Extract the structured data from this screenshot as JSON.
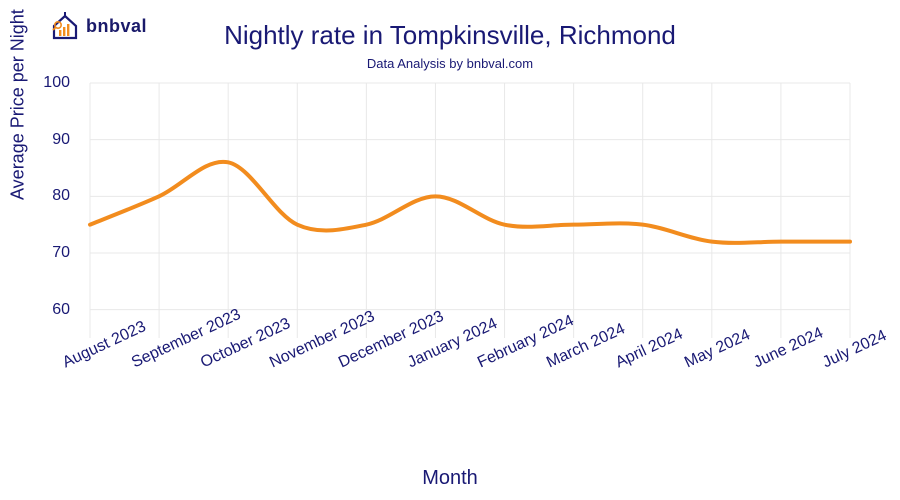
{
  "logo": {
    "text": "bnbval",
    "icon_house_stroke": "#191974",
    "icon_bar_color": "#f28c1e",
    "icon_lens_color": "#f28c1e"
  },
  "chart": {
    "type": "line",
    "title": "Nightly rate in Tompkinsville, Richmond",
    "subtitle": "Data Analysis by bnbval.com",
    "ylabel": "Average Price per Night",
    "xlabel": "Month",
    "title_fontsize": 26,
    "subtitle_fontsize": 13,
    "axis_label_fontsize": 18,
    "tick_fontsize": 16,
    "text_color": "#191974",
    "background_color": "#ffffff",
    "grid_color": "#e8e8e8",
    "line_color": "#f28c1e",
    "line_width": 4,
    "ylim": [
      55,
      100
    ],
    "yticks": [
      60,
      70,
      80,
      90,
      100
    ],
    "x_categories": [
      "August 2023",
      "September 2023",
      "October 2023",
      "November 2023",
      "December 2023",
      "January 2024",
      "February 2024",
      "March 2024",
      "April 2024",
      "May 2024",
      "June 2024",
      "July 2024"
    ],
    "values": [
      75,
      80,
      86,
      75,
      75,
      80,
      75,
      75,
      75,
      72,
      72,
      72
    ]
  }
}
